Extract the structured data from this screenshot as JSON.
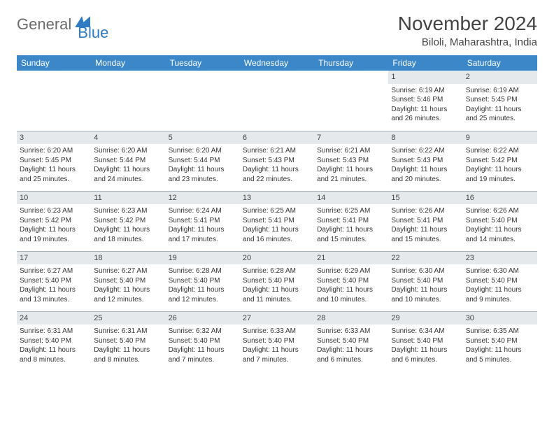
{
  "logo": {
    "part1": "General",
    "part2": "Blue"
  },
  "title": "November 2024",
  "location": "Biloli, Maharashtra, India",
  "dayHeaders": [
    "Sunday",
    "Monday",
    "Tuesday",
    "Wednesday",
    "Thursday",
    "Friday",
    "Saturday"
  ],
  "colors": {
    "headerBg": "#3c87c7",
    "daynumBg": "#e6e9ec",
    "border": "#a8b5c0",
    "logoBlue": "#2e7bc4",
    "logoGray": "#6b6b6b"
  },
  "weeks": [
    [
      null,
      null,
      null,
      null,
      null,
      {
        "n": "1",
        "sr": "6:19 AM",
        "ss": "5:46 PM",
        "dl": "11 hours and 26 minutes."
      },
      {
        "n": "2",
        "sr": "6:19 AM",
        "ss": "5:45 PM",
        "dl": "11 hours and 25 minutes."
      }
    ],
    [
      {
        "n": "3",
        "sr": "6:20 AM",
        "ss": "5:45 PM",
        "dl": "11 hours and 25 minutes."
      },
      {
        "n": "4",
        "sr": "6:20 AM",
        "ss": "5:44 PM",
        "dl": "11 hours and 24 minutes."
      },
      {
        "n": "5",
        "sr": "6:20 AM",
        "ss": "5:44 PM",
        "dl": "11 hours and 23 minutes."
      },
      {
        "n": "6",
        "sr": "6:21 AM",
        "ss": "5:43 PM",
        "dl": "11 hours and 22 minutes."
      },
      {
        "n": "7",
        "sr": "6:21 AM",
        "ss": "5:43 PM",
        "dl": "11 hours and 21 minutes."
      },
      {
        "n": "8",
        "sr": "6:22 AM",
        "ss": "5:43 PM",
        "dl": "11 hours and 20 minutes."
      },
      {
        "n": "9",
        "sr": "6:22 AM",
        "ss": "5:42 PM",
        "dl": "11 hours and 19 minutes."
      }
    ],
    [
      {
        "n": "10",
        "sr": "6:23 AM",
        "ss": "5:42 PM",
        "dl": "11 hours and 19 minutes."
      },
      {
        "n": "11",
        "sr": "6:23 AM",
        "ss": "5:42 PM",
        "dl": "11 hours and 18 minutes."
      },
      {
        "n": "12",
        "sr": "6:24 AM",
        "ss": "5:41 PM",
        "dl": "11 hours and 17 minutes."
      },
      {
        "n": "13",
        "sr": "6:25 AM",
        "ss": "5:41 PM",
        "dl": "11 hours and 16 minutes."
      },
      {
        "n": "14",
        "sr": "6:25 AM",
        "ss": "5:41 PM",
        "dl": "11 hours and 15 minutes."
      },
      {
        "n": "15",
        "sr": "6:26 AM",
        "ss": "5:41 PM",
        "dl": "11 hours and 15 minutes."
      },
      {
        "n": "16",
        "sr": "6:26 AM",
        "ss": "5:40 PM",
        "dl": "11 hours and 14 minutes."
      }
    ],
    [
      {
        "n": "17",
        "sr": "6:27 AM",
        "ss": "5:40 PM",
        "dl": "11 hours and 13 minutes."
      },
      {
        "n": "18",
        "sr": "6:27 AM",
        "ss": "5:40 PM",
        "dl": "11 hours and 12 minutes."
      },
      {
        "n": "19",
        "sr": "6:28 AM",
        "ss": "5:40 PM",
        "dl": "11 hours and 12 minutes."
      },
      {
        "n": "20",
        "sr": "6:28 AM",
        "ss": "5:40 PM",
        "dl": "11 hours and 11 minutes."
      },
      {
        "n": "21",
        "sr": "6:29 AM",
        "ss": "5:40 PM",
        "dl": "11 hours and 10 minutes."
      },
      {
        "n": "22",
        "sr": "6:30 AM",
        "ss": "5:40 PM",
        "dl": "11 hours and 10 minutes."
      },
      {
        "n": "23",
        "sr": "6:30 AM",
        "ss": "5:40 PM",
        "dl": "11 hours and 9 minutes."
      }
    ],
    [
      {
        "n": "24",
        "sr": "6:31 AM",
        "ss": "5:40 PM",
        "dl": "11 hours and 8 minutes."
      },
      {
        "n": "25",
        "sr": "6:31 AM",
        "ss": "5:40 PM",
        "dl": "11 hours and 8 minutes."
      },
      {
        "n": "26",
        "sr": "6:32 AM",
        "ss": "5:40 PM",
        "dl": "11 hours and 7 minutes."
      },
      {
        "n": "27",
        "sr": "6:33 AM",
        "ss": "5:40 PM",
        "dl": "11 hours and 7 minutes."
      },
      {
        "n": "28",
        "sr": "6:33 AM",
        "ss": "5:40 PM",
        "dl": "11 hours and 6 minutes."
      },
      {
        "n": "29",
        "sr": "6:34 AM",
        "ss": "5:40 PM",
        "dl": "11 hours and 6 minutes."
      },
      {
        "n": "30",
        "sr": "6:35 AM",
        "ss": "5:40 PM",
        "dl": "11 hours and 5 minutes."
      }
    ]
  ],
  "labels": {
    "sunrise": "Sunrise: ",
    "sunset": "Sunset: ",
    "daylight": "Daylight: "
  }
}
